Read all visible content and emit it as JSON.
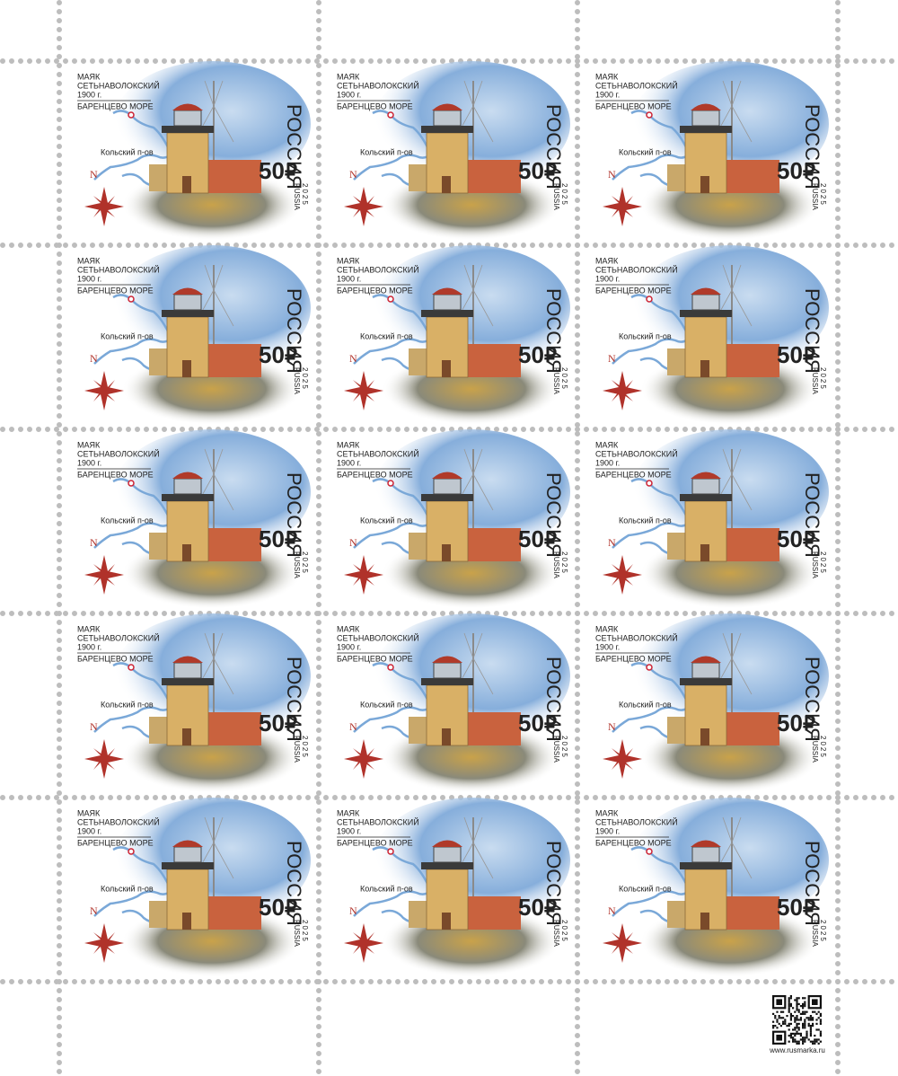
{
  "stamp": {
    "title_line1": "МАЯК",
    "title_line2": "СЕТЬНАВОЛОКСКИЙ",
    "year_built": "1900 г.",
    "sea": "БАРЕНЦЕВО МОРЕ",
    "peninsula": "Кольский п-ов",
    "compass": "N",
    "country": "РОССИЯ",
    "denomination": "50",
    "currency": "₽",
    "country_latin": "RUSSIA",
    "issue_year": "2025"
  },
  "footer": {
    "website": "www.rusmarka.ru"
  }
}
